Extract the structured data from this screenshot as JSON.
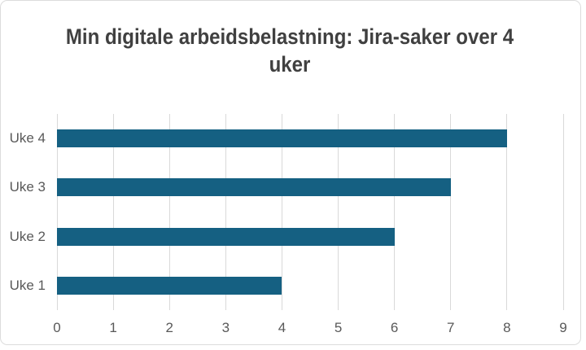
{
  "chart_data": {
    "type": "bar",
    "orientation": "horizontal",
    "title": "Min digitale arbeidsbelastning: Jira-saker over 4 uker",
    "categories": [
      "Uke 1",
      "Uke 2",
      "Uke 3",
      "Uke 4"
    ],
    "values": [
      4,
      6,
      7,
      8
    ],
    "display_order_top_to_bottom": [
      "Uke 4",
      "Uke 3",
      "Uke 2",
      "Uke 1"
    ],
    "xlabel": "",
    "ylabel": "",
    "xlim": [
      0,
      9
    ],
    "xticks": [
      0,
      1,
      2,
      3,
      4,
      5,
      6,
      7,
      8,
      9
    ],
    "grid": true,
    "legend": false,
    "colors": {
      "bar": "#156082",
      "gridline": "#D9D9D9",
      "axis_label": "#595959",
      "title": "#404040",
      "frame_border": "#DCDCDC",
      "background": "#FFFFFF"
    }
  }
}
